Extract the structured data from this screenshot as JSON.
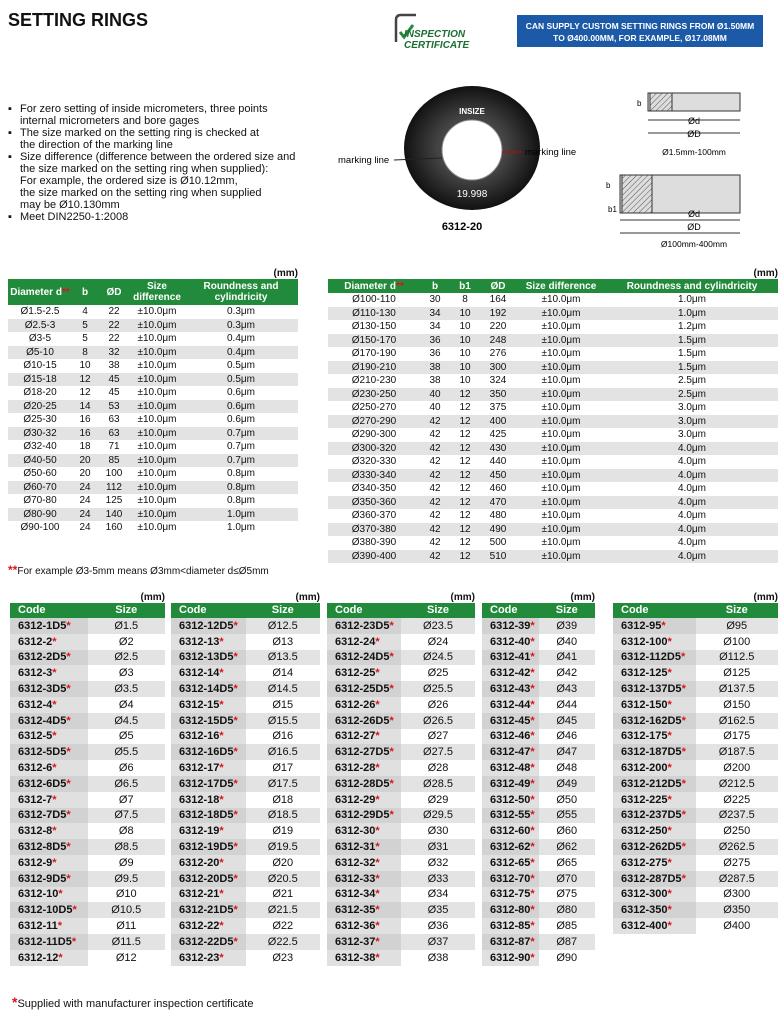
{
  "header": {
    "title": "SETTING RINGS",
    "badge": [
      "INSPECTION",
      "CERTIFICATE"
    ],
    "notice": [
      "CAN SUPPLY CUSTOM SETTING RINGS FROM Ø1.50MM",
      "TO Ø400.00MM, FOR EXAMPLE, Ø17.08MM"
    ]
  },
  "features": [
    [
      "For zero setting of inside micrometers, three points",
      "internal micrometers and bore gages"
    ],
    [
      "The size marked on the setting ring is checked at",
      "the direction of the marking line"
    ],
    [
      "Size difference (difference between the ordered size and",
      "the size marked on the setting ring when supplied):",
      "For example, the ordered size is Ø10.12mm,",
      "the size marked on the setting ring when supplied",
      "may be Ø10.130mm"
    ],
    [
      "Meet DIN2250-1:2008"
    ]
  ],
  "figure": {
    "brand": "INSIZE",
    "reading": "19.998",
    "marking_left": "marking line",
    "marking_right": "marking line",
    "model": "6312-20",
    "small": {
      "b": "b",
      "d": "Ød",
      "D": "ØD",
      "range": "Ø1.5mm-100mm"
    },
    "large": {
      "b": "b",
      "b1": "b1",
      "d": "Ød",
      "D": "ØD",
      "range": "Ø100mm-400mm"
    }
  },
  "table_small": {
    "unit": "(mm)",
    "header_mark": "**",
    "headers": [
      "Diameter d",
      "b",
      "ØD",
      "Size difference",
      "Roundness and cylindricity"
    ],
    "rows": [
      [
        "Ø1.5-2.5",
        "4",
        "22",
        "±10.0μm",
        "0.3μm"
      ],
      [
        "Ø2.5-3",
        "5",
        "22",
        "±10.0μm",
        "0.3μm"
      ],
      [
        "Ø3-5",
        "5",
        "22",
        "±10.0μm",
        "0.4μm"
      ],
      [
        "Ø5-10",
        "8",
        "32",
        "±10.0μm",
        "0.4μm"
      ],
      [
        "Ø10-15",
        "10",
        "38",
        "±10.0μm",
        "0.5μm"
      ],
      [
        "Ø15-18",
        "12",
        "45",
        "±10.0μm",
        "0.5μm"
      ],
      [
        "Ø18-20",
        "12",
        "45",
        "±10.0μm",
        "0.6μm"
      ],
      [
        "Ø20-25",
        "14",
        "53",
        "±10.0μm",
        "0.6μm"
      ],
      [
        "Ø25-30",
        "16",
        "63",
        "±10.0μm",
        "0.6μm"
      ],
      [
        "Ø30-32",
        "16",
        "63",
        "±10.0μm",
        "0.7μm"
      ],
      [
        "Ø32-40",
        "18",
        "71",
        "±10.0μm",
        "0.7μm"
      ],
      [
        "Ø40-50",
        "20",
        "85",
        "±10.0μm",
        "0.7μm"
      ],
      [
        "Ø50-60",
        "20",
        "100",
        "±10.0μm",
        "0.8μm"
      ],
      [
        "Ø60-70",
        "24",
        "112",
        "±10.0μm",
        "0.8μm"
      ],
      [
        "Ø70-80",
        "24",
        "125",
        "±10.0μm",
        "0.8μm"
      ],
      [
        "Ø80-90",
        "24",
        "140",
        "±10.0μm",
        "1.0μm"
      ],
      [
        "Ø90-100",
        "24",
        "160",
        "±10.0μm",
        "1.0μm"
      ]
    ],
    "note_mark": "**",
    "note": "For example Ø3-5mm means Ø3mm<diameter d≤Ø5mm"
  },
  "table_large": {
    "unit": "(mm)",
    "header_mark": "**",
    "headers": [
      "Diameter d",
      "b",
      "b1",
      "ØD",
      "Size difference",
      "Roundness and cylindricity"
    ],
    "rows": [
      [
        "Ø100-110",
        "30",
        "8",
        "164",
        "±10.0μm",
        "1.0μm"
      ],
      [
        "Ø110-130",
        "34",
        "10",
        "192",
        "±10.0μm",
        "1.0μm"
      ],
      [
        "Ø130-150",
        "34",
        "10",
        "220",
        "±10.0μm",
        "1.2μm"
      ],
      [
        "Ø150-170",
        "36",
        "10",
        "248",
        "±10.0μm",
        "1.5μm"
      ],
      [
        "Ø170-190",
        "36",
        "10",
        "276",
        "±10.0μm",
        "1.5μm"
      ],
      [
        "Ø190-210",
        "38",
        "10",
        "300",
        "±10.0μm",
        "1.5μm"
      ],
      [
        "Ø210-230",
        "38",
        "10",
        "324",
        "±10.0μm",
        "2.5μm"
      ],
      [
        "Ø230-250",
        "40",
        "12",
        "350",
        "±10.0μm",
        "2.5μm"
      ],
      [
        "Ø250-270",
        "40",
        "12",
        "375",
        "±10.0μm",
        "3.0μm"
      ],
      [
        "Ø270-290",
        "42",
        "12",
        "400",
        "±10.0μm",
        "3.0μm"
      ],
      [
        "Ø290-300",
        "42",
        "12",
        "425",
        "±10.0μm",
        "3.0μm"
      ],
      [
        "Ø300-320",
        "42",
        "12",
        "430",
        "±10.0μm",
        "4.0μm"
      ],
      [
        "Ø320-330",
        "42",
        "12",
        "440",
        "±10.0μm",
        "4.0μm"
      ],
      [
        "Ø330-340",
        "42",
        "12",
        "450",
        "±10.0μm",
        "4.0μm"
      ],
      [
        "Ø340-350",
        "42",
        "12",
        "460",
        "±10.0μm",
        "4.0μm"
      ],
      [
        "Ø350-360",
        "42",
        "12",
        "470",
        "±10.0μm",
        "4.0μm"
      ],
      [
        "Ø360-370",
        "42",
        "12",
        "480",
        "±10.0μm",
        "4.0μm"
      ],
      [
        "Ø370-380",
        "42",
        "12",
        "490",
        "±10.0μm",
        "4.0μm"
      ],
      [
        "Ø380-390",
        "42",
        "12",
        "500",
        "±10.0μm",
        "4.0μm"
      ],
      [
        "Ø390-400",
        "42",
        "12",
        "510",
        "±10.0μm",
        "4.0μm"
      ]
    ]
  },
  "codes": {
    "unit": "(mm)",
    "headers": [
      "Code",
      "Size"
    ],
    "mark": "*",
    "columns": [
      [
        [
          "6312-1D5",
          "Ø1.5"
        ],
        [
          "6312-2",
          "Ø2"
        ],
        [
          "6312-2D5",
          "Ø2.5"
        ],
        [
          "6312-3",
          "Ø3"
        ],
        [
          "6312-3D5",
          "Ø3.5"
        ],
        [
          "6312-4",
          "Ø4"
        ],
        [
          "6312-4D5",
          "Ø4.5"
        ],
        [
          "6312-5",
          "Ø5"
        ],
        [
          "6312-5D5",
          "Ø5.5"
        ],
        [
          "6312-6",
          "Ø6"
        ],
        [
          "6312-6D5",
          "Ø6.5"
        ],
        [
          "6312-7",
          "Ø7"
        ],
        [
          "6312-7D5",
          "Ø7.5"
        ],
        [
          "6312-8",
          "Ø8"
        ],
        [
          "6312-8D5",
          "Ø8.5"
        ],
        [
          "6312-9",
          "Ø9"
        ],
        [
          "6312-9D5",
          "Ø9.5"
        ],
        [
          "6312-10",
          "Ø10"
        ],
        [
          "6312-10D5",
          "Ø10.5"
        ],
        [
          "6312-11",
          "Ø11"
        ],
        [
          "6312-11D5",
          "Ø11.5"
        ],
        [
          "6312-12",
          "Ø12"
        ]
      ],
      [
        [
          "6312-12D5",
          "Ø12.5"
        ],
        [
          "6312-13",
          "Ø13"
        ],
        [
          "6312-13D5",
          "Ø13.5"
        ],
        [
          "6312-14",
          "Ø14"
        ],
        [
          "6312-14D5",
          "Ø14.5"
        ],
        [
          "6312-15",
          "Ø15"
        ],
        [
          "6312-15D5",
          "Ø15.5"
        ],
        [
          "6312-16",
          "Ø16"
        ],
        [
          "6312-16D5",
          "Ø16.5"
        ],
        [
          "6312-17",
          "Ø17"
        ],
        [
          "6312-17D5",
          "Ø17.5"
        ],
        [
          "6312-18",
          "Ø18"
        ],
        [
          "6312-18D5",
          "Ø18.5"
        ],
        [
          "6312-19",
          "Ø19"
        ],
        [
          "6312-19D5",
          "Ø19.5"
        ],
        [
          "6312-20",
          "Ø20"
        ],
        [
          "6312-20D5",
          "Ø20.5"
        ],
        [
          "6312-21",
          "Ø21"
        ],
        [
          "6312-21D5",
          "Ø21.5"
        ],
        [
          "6312-22",
          "Ø22"
        ],
        [
          "6312-22D5",
          "Ø22.5"
        ],
        [
          "6312-23",
          "Ø23"
        ]
      ],
      [
        [
          "6312-23D5",
          "Ø23.5"
        ],
        [
          "6312-24",
          "Ø24"
        ],
        [
          "6312-24D5",
          "Ø24.5"
        ],
        [
          "6312-25",
          "Ø25"
        ],
        [
          "6312-25D5",
          "Ø25.5"
        ],
        [
          "6312-26",
          "Ø26"
        ],
        [
          "6312-26D5",
          "Ø26.5"
        ],
        [
          "6312-27",
          "Ø27"
        ],
        [
          "6312-27D5",
          "Ø27.5"
        ],
        [
          "6312-28",
          "Ø28"
        ],
        [
          "6312-28D5",
          "Ø28.5"
        ],
        [
          "6312-29",
          "Ø29"
        ],
        [
          "6312-29D5",
          "Ø29.5"
        ],
        [
          "6312-30",
          "Ø30"
        ],
        [
          "6312-31",
          "Ø31"
        ],
        [
          "6312-32",
          "Ø32"
        ],
        [
          "6312-33",
          "Ø33"
        ],
        [
          "6312-34",
          "Ø34"
        ],
        [
          "6312-35",
          "Ø35"
        ],
        [
          "6312-36",
          "Ø36"
        ],
        [
          "6312-37",
          "Ø37"
        ],
        [
          "6312-38",
          "Ø38"
        ]
      ],
      [
        [
          "6312-39",
          "Ø39"
        ],
        [
          "6312-40",
          "Ø40"
        ],
        [
          "6312-41",
          "Ø41"
        ],
        [
          "6312-42",
          "Ø42"
        ],
        [
          "6312-43",
          "Ø43"
        ],
        [
          "6312-44",
          "Ø44"
        ],
        [
          "6312-45",
          "Ø45"
        ],
        [
          "6312-46",
          "Ø46"
        ],
        [
          "6312-47",
          "Ø47"
        ],
        [
          "6312-48",
          "Ø48"
        ],
        [
          "6312-49",
          "Ø49"
        ],
        [
          "6312-50",
          "Ø50"
        ],
        [
          "6312-55",
          "Ø55"
        ],
        [
          "6312-60",
          "Ø60"
        ],
        [
          "6312-62",
          "Ø62"
        ],
        [
          "6312-65",
          "Ø65"
        ],
        [
          "6312-70",
          "Ø70"
        ],
        [
          "6312-75",
          "Ø75"
        ],
        [
          "6312-80",
          "Ø80"
        ],
        [
          "6312-85",
          "Ø85"
        ],
        [
          "6312-87",
          "Ø87"
        ],
        [
          "6312-90",
          "Ø90"
        ]
      ],
      [
        [
          "6312-95",
          "Ø95"
        ],
        [
          "6312-100",
          "Ø100"
        ],
        [
          "6312-112D5",
          "Ø112.5"
        ],
        [
          "6312-125",
          "Ø125"
        ],
        [
          "6312-137D5",
          "Ø137.5"
        ],
        [
          "6312-150",
          "Ø150"
        ],
        [
          "6312-162D5",
          "Ø162.5"
        ],
        [
          "6312-175",
          "Ø175"
        ],
        [
          "6312-187D5",
          "Ø187.5"
        ],
        [
          "6312-200",
          "Ø200"
        ],
        [
          "6312-212D5",
          "Ø212.5"
        ],
        [
          "6312-225",
          "Ø225"
        ],
        [
          "6312-237D5",
          "Ø237.5"
        ],
        [
          "6312-250",
          "Ø250"
        ],
        [
          "6312-262D5",
          "Ø262.5"
        ],
        [
          "6312-275",
          "Ø275"
        ],
        [
          "6312-287D5",
          "Ø287.5"
        ],
        [
          "6312-300",
          "Ø300"
        ],
        [
          "6312-350",
          "Ø350"
        ],
        [
          "6312-400",
          "Ø400"
        ]
      ]
    ]
  },
  "footnote": {
    "mark": "*",
    "text": "Supplied with manufacturer inspection certificate"
  }
}
